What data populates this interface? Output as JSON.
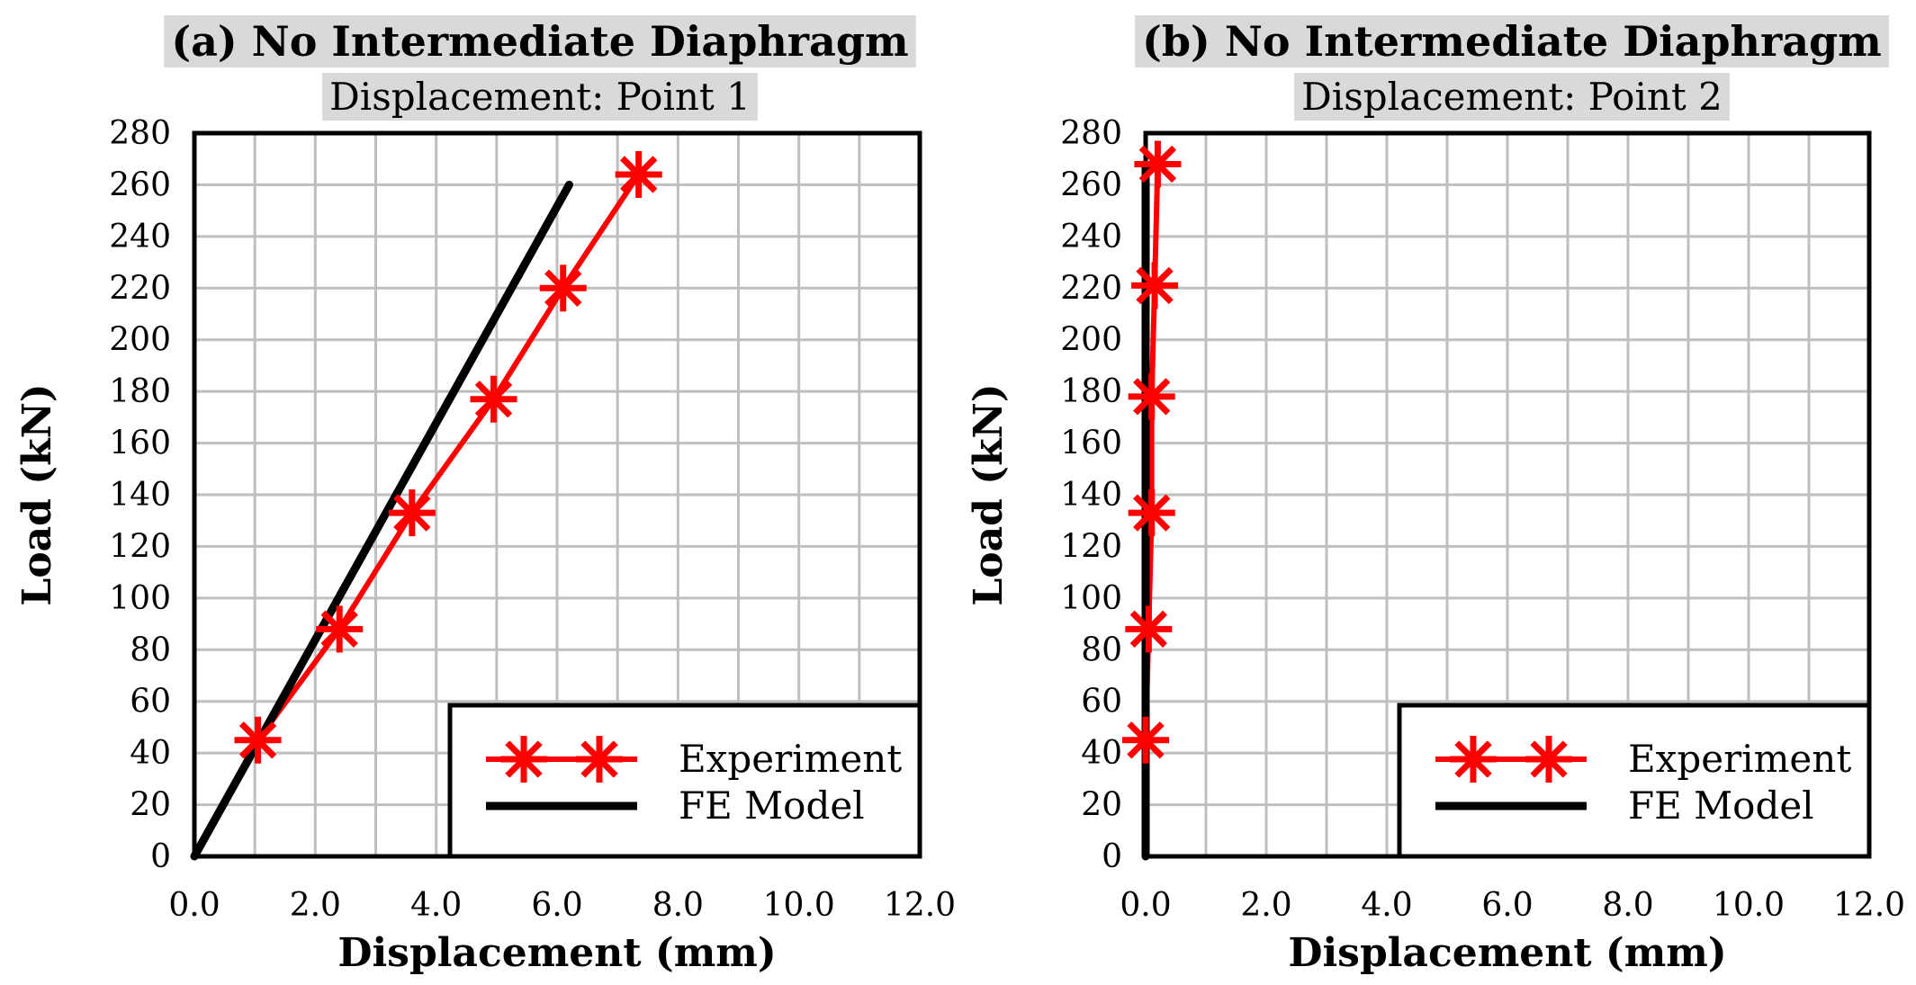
{
  "figure": {
    "title_bg_color": "#d9d9d9",
    "grid_color": "#bfbfbf",
    "experiment_color": "#ff0000",
    "fe_model_color": "#000000"
  },
  "chart_data": [
    {
      "type": "line",
      "title": "(a) No Intermediate Diaphragm",
      "subtitle": "Displacement: Point 1",
      "xlabel": "Displacement (mm)",
      "ylabel": "Load (kN)",
      "xlim": [
        0,
        12
      ],
      "ylim": [
        0,
        280
      ],
      "x_ticks": [
        "0.0",
        "2.0",
        "4.0",
        "6.0",
        "8.0",
        "10.0",
        "12.0"
      ],
      "y_ticks": [
        "0",
        "20",
        "40",
        "60",
        "80",
        "100",
        "120",
        "140",
        "160",
        "180",
        "200",
        "220",
        "240",
        "260",
        "280"
      ],
      "grid": true,
      "legend_position": "bottom-right",
      "series": [
        {
          "name": "Experiment",
          "color": "#ff0000",
          "marker": "asterisk",
          "x": [
            0.0,
            1.05,
            2.4,
            3.6,
            4.95,
            6.1,
            7.35
          ],
          "y": [
            0,
            45,
            88,
            133,
            177,
            220,
            264
          ]
        },
        {
          "name": "FE Model",
          "color": "#000000",
          "marker": "none",
          "x": [
            0.0,
            6.2
          ],
          "y": [
            0,
            260
          ]
        }
      ]
    },
    {
      "type": "line",
      "title": "(b) No Intermediate Diaphragm",
      "subtitle": "Displacement: Point 2",
      "xlabel": "Displacement (mm)",
      "ylabel": "Load (kN)",
      "xlim": [
        0,
        12
      ],
      "ylim": [
        0,
        280
      ],
      "x_ticks": [
        "0.0",
        "2.0",
        "4.0",
        "6.0",
        "8.0",
        "10.0",
        "12.0"
      ],
      "y_ticks": [
        "0",
        "20",
        "40",
        "60",
        "80",
        "100",
        "120",
        "140",
        "160",
        "180",
        "200",
        "220",
        "240",
        "260",
        "280"
      ],
      "grid": true,
      "legend_position": "bottom-right",
      "series": [
        {
          "name": "Experiment",
          "color": "#ff0000",
          "marker": "asterisk",
          "x": [
            0.0,
            0.0,
            0.05,
            0.1,
            0.1,
            0.15,
            0.2
          ],
          "y": [
            0,
            45,
            88,
            133,
            178,
            221,
            268
          ]
        },
        {
          "name": "FE Model",
          "color": "#000000",
          "marker": "none",
          "x": [
            0.0,
            0.0
          ],
          "y": [
            0,
            268
          ]
        }
      ]
    }
  ]
}
